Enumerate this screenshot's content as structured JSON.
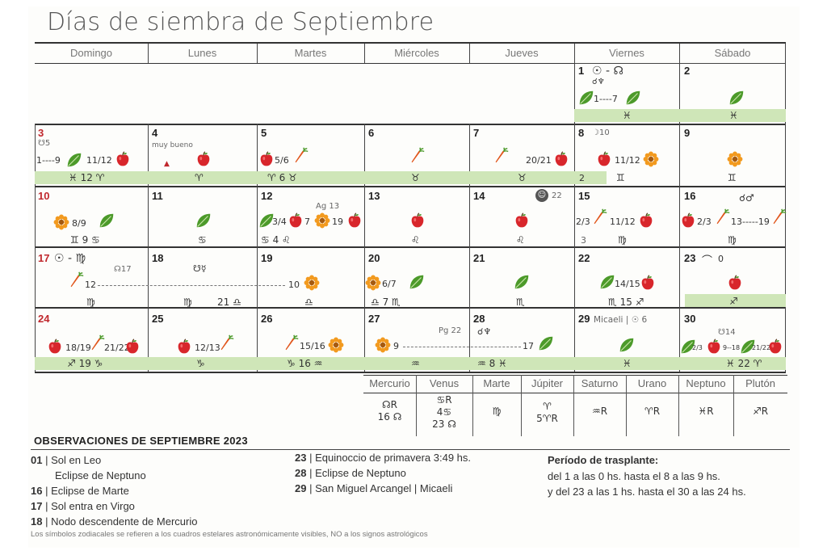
{
  "title": "Días de siembra de Septiembre",
  "weekdays": [
    "Domingo",
    "Lunes",
    "Martes",
    "Miércoles",
    "Jueves",
    "Viernes",
    "Sábado"
  ],
  "cells": {
    "d1": {
      "num": "1",
      "top": "☉ - ☊",
      "sub": "☌♆",
      "range": "1----7",
      "sign": "♓"
    },
    "d2": {
      "num": "2",
      "sign": "♓"
    },
    "d3": {
      "num": "3",
      "note": "☋5",
      "range_a": "1----9",
      "range_b": "11/12",
      "sign": "♓ 12 ♈"
    },
    "d4": {
      "num": "4",
      "note": "muy bueno",
      "sign": "♈"
    },
    "d5": {
      "num": "5",
      "range": "5/6",
      "sign": "♈ 6 ♉"
    },
    "d6": {
      "num": "6",
      "sign": "♉"
    },
    "d7": {
      "num": "7",
      "range": "20/21",
      "sign": "♉"
    },
    "d8": {
      "num": "8",
      "note": "☽10",
      "range": "11/12",
      "sign_a": "2",
      "sign": "♊"
    },
    "d9": {
      "num": "9",
      "sign": "♊"
    },
    "d10": {
      "num": "10",
      "range": "8/9",
      "sign": "♊ 9 ♋"
    },
    "d11": {
      "num": "11",
      "sign": "♋"
    },
    "d12": {
      "num": "12",
      "note": "Ag 13",
      "range_a": "3/4",
      "range_b": "7",
      "range_c": "19",
      "sign": "♋ 4 ♌"
    },
    "d13": {
      "num": "13",
      "sign": "♌"
    },
    "d14": {
      "num": "14",
      "note": "22",
      "sign": "♌"
    },
    "d15": {
      "num": "15",
      "range_a": "2/3",
      "range_b": "11/12",
      "sign_a": "3",
      "sign": "♍"
    },
    "d16": {
      "num": "16",
      "top": "☌♂",
      "range_a": "2/3",
      "range_b": "13-----19",
      "sign": "♍"
    },
    "d17": {
      "num": "17",
      "top": "☉ - ♍",
      "note": "☊17",
      "range": "12",
      "sign": "♍"
    },
    "d18": {
      "num": "18",
      "note": "☋☿",
      "sign": "♍",
      "sign_b": "21 ♎"
    },
    "d19": {
      "num": "19",
      "range": "10",
      "sign": "♎"
    },
    "d20": {
      "num": "20",
      "range": "6/7",
      "sign": "♎ 7 ♏"
    },
    "d21": {
      "num": "21",
      "sign": "♏"
    },
    "d22": {
      "num": "22",
      "range": "14/15",
      "sign": "♏ 15 ♐"
    },
    "d23": {
      "num": "23",
      "note": "0",
      "sign": "♐"
    },
    "d24": {
      "num": "24",
      "range_a": "18/19",
      "range_b": "21/22",
      "sign": "♐ 19 ♑"
    },
    "d25": {
      "num": "25",
      "range": "12/13",
      "sign": "♑"
    },
    "d26": {
      "num": "26",
      "range": "15/16",
      "sign": "♑ 16 ♒"
    },
    "d27": {
      "num": "27",
      "note": "Pg 22",
      "range": "9",
      "sign": "♒"
    },
    "d28": {
      "num": "28",
      "top": "☌♆",
      "range": "17",
      "sign": "♒ 8 ♓"
    },
    "d29": {
      "num": "29",
      "note": "Micaeli | ☉ 6",
      "sign": "♓"
    },
    "d30": {
      "num": "30",
      "note": "☋14",
      "range_a": "2/3",
      "range_b": "9--18",
      "range_c": "21/22",
      "sign": "♓ 22 ♈"
    }
  },
  "planets": {
    "headers": [
      "Mercurio",
      "Venus",
      "Marte",
      "Júpiter",
      "Saturno",
      "Urano",
      "Neptuno",
      "Plutón"
    ],
    "values": [
      [
        "☊R",
        "16 ☊"
      ],
      [
        "♋R",
        "4♋",
        "23 ☊"
      ],
      [
        "♍"
      ],
      [
        "♈",
        "5♈R"
      ],
      [
        "♒R"
      ],
      [
        "♈R"
      ],
      [
        "♓R"
      ],
      [
        "♐R"
      ]
    ]
  },
  "observations": {
    "title": "OBSERVACIONES DE SEPTIEMBRE 2023",
    "col1": [
      {
        "day": "01",
        "text": "Sol en Leo"
      },
      {
        "day": "",
        "text": "Eclipse de Neptuno"
      },
      {
        "day": "16",
        "text": "Eclipse de Marte"
      },
      {
        "day": "17",
        "text": "Sol entra en Virgo"
      },
      {
        "day": "18",
        "text": "Nodo descendente de Mercurio"
      }
    ],
    "col2": [
      {
        "day": "23",
        "text": "Equinoccio de primavera 3:49 hs."
      },
      {
        "day": "28",
        "text": "Eclipse de Neptuno"
      },
      {
        "day": "29",
        "text": "San Miguel Arcangel | Micaeli"
      }
    ],
    "transplant_title": "Período de trasplante:",
    "transplant": [
      "del 1 a las 0 hs. hasta el 8 a las 9 hs.",
      "y del 23 a las 1 hs. hasta el 30 a las 24 hs."
    ],
    "footnote": "Los símbolos zodiacales se refieren a los cuadros estelares astronómicamente visibles, NO a los signos astrológicos"
  },
  "colors": {
    "band": "#cfe6b8",
    "apple": "#d8262b",
    "leaf": "#4c9a2a",
    "carrot": "#e1561c",
    "flower": "#f29a1f",
    "red_day": "#c0282d"
  }
}
